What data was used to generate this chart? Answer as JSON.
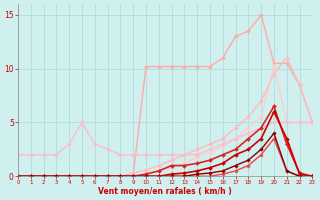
{
  "xlabel": "Vent moyen/en rafales ( km/h )",
  "xlim": [
    0,
    23
  ],
  "ylim": [
    0,
    16
  ],
  "yticks": [
    0,
    5,
    10,
    15
  ],
  "xticks": [
    0,
    1,
    2,
    3,
    4,
    5,
    6,
    7,
    8,
    9,
    10,
    11,
    12,
    13,
    14,
    15,
    16,
    17,
    18,
    19,
    20,
    21,
    22,
    23
  ],
  "background_color": "#cff0ee",
  "grid_color": "#aad8d6",
  "lines": [
    {
      "x": [
        0,
        1,
        2,
        3,
        4,
        5,
        6,
        7,
        8,
        9,
        10,
        11,
        12,
        13,
        14,
        15,
        16,
        17,
        18,
        19,
        20,
        21,
        22,
        23
      ],
      "y": [
        0,
        0,
        0,
        0,
        0,
        0,
        0,
        0,
        0,
        0,
        10.2,
        10.2,
        10.2,
        10.2,
        10.2,
        10.2,
        11,
        13,
        13.5,
        15,
        10.5,
        10.5,
        8.5,
        5.0
      ],
      "color": "#ffaaaa",
      "linewidth": 1.0,
      "marker": "D",
      "markersize": 2.0
    },
    {
      "x": [
        0,
        1,
        2,
        3,
        4,
        5,
        6,
        7,
        8,
        9,
        10,
        11,
        12,
        13,
        14,
        15,
        16,
        17,
        18,
        19,
        20,
        21,
        22,
        23
      ],
      "y": [
        0,
        0,
        0,
        0,
        0,
        0,
        0,
        0,
        0,
        0.3,
        0.6,
        1.0,
        1.5,
        2.0,
        2.5,
        3.0,
        3.5,
        4.5,
        5.5,
        7.0,
        9.5,
        11,
        8.5,
        5.0
      ],
      "color": "#ffbbbb",
      "linewidth": 1.0,
      "marker": "D",
      "markersize": 2.0
    },
    {
      "x": [
        0,
        1,
        2,
        3,
        4,
        5,
        6,
        7,
        8,
        9,
        10,
        11,
        12,
        13,
        14,
        15,
        16,
        17,
        18,
        19,
        20,
        21,
        22,
        23
      ],
      "y": [
        0,
        0,
        0,
        0,
        0,
        0,
        0,
        0,
        0,
        0,
        0.2,
        0.5,
        0.8,
        1.2,
        1.8,
        2.2,
        2.8,
        3.5,
        4.5,
        5.5,
        10.3,
        5.0,
        5.0,
        5.0
      ],
      "color": "#ffcccc",
      "linewidth": 1.0,
      "marker": "D",
      "markersize": 2.0
    },
    {
      "x": [
        0,
        1,
        2,
        3,
        4,
        5,
        6,
        7,
        8,
        9,
        10,
        11,
        12,
        13,
        14,
        15,
        16,
        17,
        18,
        19,
        20,
        21,
        22,
        23
      ],
      "y": [
        2.0,
        2.0,
        2.0,
        2.0,
        3.0,
        5.0,
        3.0,
        2.5,
        2.0,
        2.0,
        2.0,
        2.0,
        2.0,
        2.0,
        2.0,
        2.5,
        3.0,
        3.5,
        4.0,
        4.5,
        5.0,
        5.0,
        5.0,
        5.0
      ],
      "color": "#ffbbcc",
      "linewidth": 1.0,
      "marker": "D",
      "markersize": 2.0
    },
    {
      "x": [
        0,
        1,
        2,
        3,
        4,
        5,
        6,
        7,
        8,
        9,
        10,
        11,
        12,
        13,
        14,
        15,
        16,
        17,
        18,
        19,
        20,
        21,
        22,
        23
      ],
      "y": [
        0,
        0,
        0,
        0,
        0,
        0,
        0,
        0,
        0,
        0,
        0.2,
        0.5,
        1.0,
        1.0,
        1.2,
        1.5,
        2.0,
        2.5,
        3.5,
        4.5,
        6.5,
        3.0,
        0.3,
        0.0
      ],
      "color": "#dd2222",
      "linewidth": 1.2,
      "marker": "D",
      "markersize": 2.0
    },
    {
      "x": [
        0,
        1,
        2,
        3,
        4,
        5,
        6,
        7,
        8,
        9,
        10,
        11,
        12,
        13,
        14,
        15,
        16,
        17,
        18,
        19,
        20,
        21,
        22,
        23
      ],
      "y": [
        0,
        0,
        0,
        0,
        0,
        0,
        0,
        0,
        0,
        0,
        0,
        0,
        0.2,
        0.3,
        0.5,
        0.8,
        1.2,
        2.0,
        2.5,
        3.5,
        6.0,
        3.5,
        0.2,
        0.0
      ],
      "color": "#cc0000",
      "linewidth": 1.2,
      "marker": "D",
      "markersize": 2.0
    },
    {
      "x": [
        0,
        1,
        2,
        3,
        4,
        5,
        6,
        7,
        8,
        9,
        10,
        11,
        12,
        13,
        14,
        15,
        16,
        17,
        18,
        19,
        20,
        21,
        22,
        23
      ],
      "y": [
        0,
        0,
        0,
        0,
        0,
        0,
        0,
        0,
        0,
        0,
        0,
        0,
        0,
        0,
        0,
        0,
        0.2,
        0.5,
        1.0,
        2.0,
        3.5,
        0.5,
        0.0,
        0.0
      ],
      "color": "#ee4444",
      "linewidth": 1.0,
      "marker": "D",
      "markersize": 1.8
    },
    {
      "x": [
        0,
        1,
        2,
        3,
        4,
        5,
        6,
        7,
        8,
        9,
        10,
        11,
        12,
        13,
        14,
        15,
        16,
        17,
        18,
        19,
        20,
        21,
        22,
        23
      ],
      "y": [
        0,
        0,
        0,
        0,
        0,
        0,
        0,
        0,
        0,
        0,
        0,
        0,
        0,
        0,
        0.2,
        0.3,
        0.5,
        1.0,
        1.5,
        2.5,
        4.0,
        0.5,
        0.0,
        0.0
      ],
      "color": "#880000",
      "linewidth": 1.0,
      "marker": "D",
      "markersize": 1.8
    }
  ]
}
